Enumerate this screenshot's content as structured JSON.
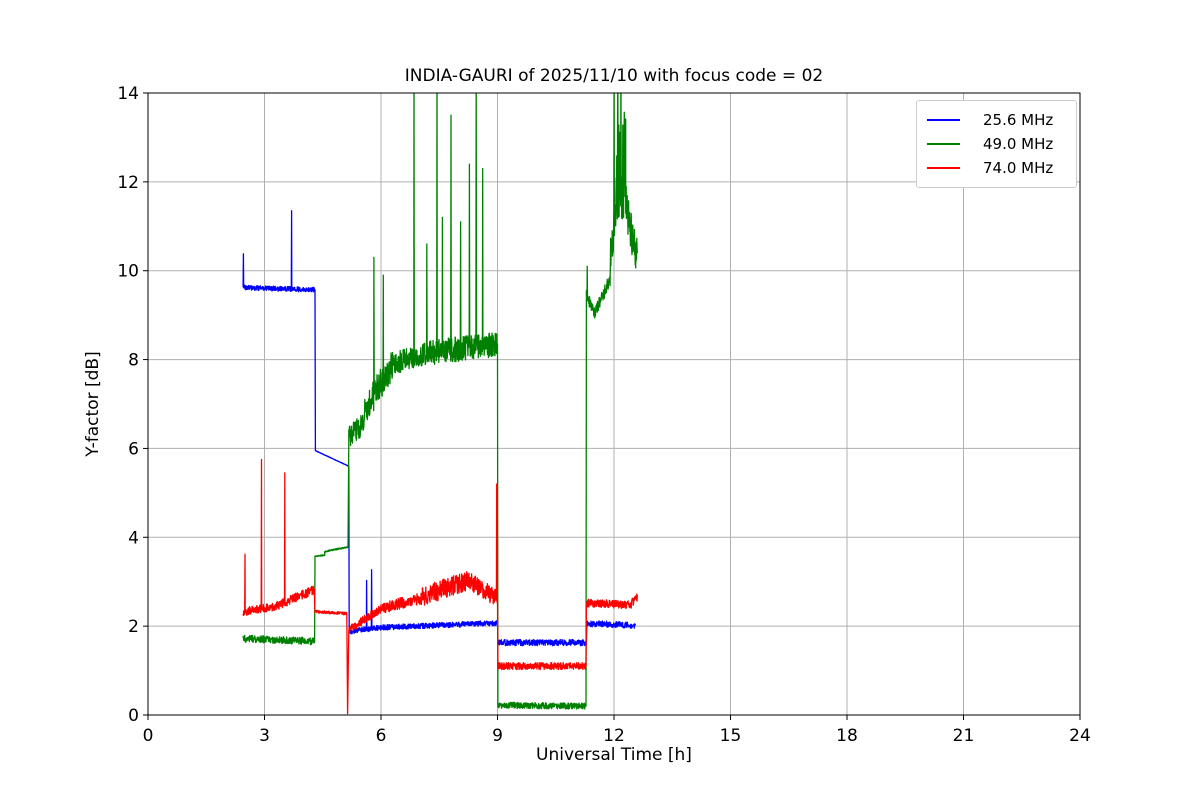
{
  "chart_data": {
    "type": "line",
    "title": "INDIA-GAURI of 2025/11/10 with focus code = 02",
    "xlabel": "Universal Time [h]",
    "ylabel": "Y-factor [dB]",
    "xlim": [
      0,
      24
    ],
    "ylim": [
      0,
      14
    ],
    "xticks": [
      0,
      3,
      6,
      9,
      12,
      15,
      18,
      21,
      24
    ],
    "yticks": [
      0,
      2,
      4,
      6,
      8,
      10,
      12,
      14
    ],
    "grid": true,
    "grid_color": "#b0b0b0",
    "axis_color": "#000000",
    "background": "#ffffff",
    "legend_position": "upper right",
    "series": [
      {
        "name": "25.6 MHz",
        "color": "#0000ff",
        "segments": [
          {
            "x0": 2.45,
            "x1": 4.3,
            "y0": 9.62,
            "y1": 9.57,
            "noise": 0.055
          },
          {
            "x0": 4.3,
            "x1": 4.31,
            "y0": 9.57,
            "y1": 5.95,
            "noise": 0
          },
          {
            "x0": 4.31,
            "x1": 5.17,
            "y0": 5.95,
            "y1": 5.6,
            "noise": 0.005
          },
          {
            "x0": 5.17,
            "x1": 5.18,
            "y0": 5.6,
            "y1": 1.85,
            "noise": 0
          },
          {
            "x0": 5.18,
            "x1": 6.0,
            "y0": 1.88,
            "y1": 1.97,
            "noise": 0.06
          },
          {
            "x0": 6.0,
            "x1": 9.0,
            "y0": 1.97,
            "y1": 2.07,
            "noise": 0.06
          },
          {
            "x0": 9.0,
            "x1": 9.01,
            "y0": 2.07,
            "y1": 1.64,
            "noise": 0
          },
          {
            "x0": 9.01,
            "x1": 11.29,
            "y0": 1.63,
            "y1": 1.63,
            "noise": 0.07
          },
          {
            "x0": 11.29,
            "x1": 11.3,
            "y0": 1.63,
            "y1": 2.06,
            "noise": 0
          },
          {
            "x0": 11.3,
            "x1": 12.55,
            "y0": 2.06,
            "y1": 2.02,
            "noise": 0.07
          }
        ],
        "spikes": [
          {
            "x": 2.46,
            "y": 10.38
          },
          {
            "x": 3.7,
            "y": 11.35
          },
          {
            "x": 5.63,
            "y": 3.03
          },
          {
            "x": 5.76,
            "y": 3.27
          }
        ]
      },
      {
        "name": "49.0 MHz",
        "color": "#008000",
        "segments": [
          {
            "x0": 2.45,
            "x1": 4.29,
            "y0": 1.72,
            "y1": 1.66,
            "noise": 0.08
          },
          {
            "x0": 4.29,
            "x1": 4.3,
            "y0": 1.66,
            "y1": 3.55,
            "noise": 0
          },
          {
            "x0": 4.3,
            "x1": 4.55,
            "y0": 3.57,
            "y1": 3.6,
            "noise": 0.012
          },
          {
            "x0": 4.55,
            "x1": 5.15,
            "y0": 3.68,
            "y1": 3.78,
            "noise": 0.015
          },
          {
            "x0": 5.15,
            "x1": 5.17,
            "y0": 3.78,
            "y1": 6.1,
            "noise": 0
          },
          {
            "x0": 5.17,
            "x1": 5.55,
            "y0": 6.25,
            "y1": 6.55,
            "noise": 0.25
          },
          {
            "x0": 5.55,
            "x1": 6.3,
            "y0": 6.8,
            "y1": 7.9,
            "noise": 0.35
          },
          {
            "x0": 6.3,
            "x1": 7.2,
            "y0": 7.9,
            "y1": 8.15,
            "noise": 0.25
          },
          {
            "x0": 7.2,
            "x1": 9.0,
            "y0": 8.15,
            "y1": 8.35,
            "noise": 0.28
          },
          {
            "x0": 9.0,
            "x1": 9.01,
            "y0": 8.35,
            "y1": 0.22,
            "noise": 0
          },
          {
            "x0": 9.01,
            "x1": 11.28,
            "y0": 0.22,
            "y1": 0.2,
            "noise": 0.07
          },
          {
            "x0": 11.28,
            "x1": 11.29,
            "y0": 0.2,
            "y1": 9.55,
            "noise": 0
          },
          {
            "x0": 11.29,
            "x1": 11.5,
            "y0": 9.45,
            "y1": 9.05,
            "noise": 0.13
          },
          {
            "x0": 11.5,
            "x1": 11.9,
            "y0": 9.05,
            "y1": 9.8,
            "noise": 0.15
          },
          {
            "x0": 11.9,
            "x1": 12.05,
            "y0": 10.2,
            "y1": 11.5,
            "noise": 0.5
          },
          {
            "x0": 12.05,
            "x1": 12.3,
            "y0": 12.0,
            "y1": 12.5,
            "noise": 1.2
          },
          {
            "x0": 12.3,
            "x1": 12.6,
            "y0": 11.4,
            "y1": 10.3,
            "noise": 0.55
          }
        ],
        "spikes": [
          {
            "x": 5.82,
            "y": 10.3
          },
          {
            "x": 6.06,
            "y": 9.9
          },
          {
            "x": 6.85,
            "y": 14.8
          },
          {
            "x": 7.18,
            "y": 10.6
          },
          {
            "x": 7.44,
            "y": 14.8
          },
          {
            "x": 7.58,
            "y": 11.2
          },
          {
            "x": 7.8,
            "y": 13.5
          },
          {
            "x": 8.05,
            "y": 11.1
          },
          {
            "x": 8.28,
            "y": 12.4
          },
          {
            "x": 8.45,
            "y": 14.8
          },
          {
            "x": 8.62,
            "y": 12.3
          },
          {
            "x": 11.31,
            "y": 10.1
          },
          {
            "x": 12.0,
            "y": 14.8
          },
          {
            "x": 12.1,
            "y": 14.8
          },
          {
            "x": 12.18,
            "y": 14.8
          }
        ]
      },
      {
        "name": "74.0 MHz",
        "color": "#ff0000",
        "segments": [
          {
            "x0": 2.45,
            "x1": 3.3,
            "y0": 2.32,
            "y1": 2.45,
            "noise": 0.09
          },
          {
            "x0": 3.3,
            "x1": 4.28,
            "y0": 2.45,
            "y1": 2.82,
            "noise": 0.1
          },
          {
            "x0": 4.28,
            "x1": 4.3,
            "y0": 2.82,
            "y1": 2.33,
            "noise": 0
          },
          {
            "x0": 4.3,
            "x1": 5.12,
            "y0": 2.33,
            "y1": 2.28,
            "noise": 0.03
          },
          {
            "x0": 5.12,
            "x1": 5.14,
            "y0": 2.28,
            "y1": 0.03,
            "noise": 0
          },
          {
            "x0": 5.14,
            "x1": 5.17,
            "y0": 0.03,
            "y1": 1.9,
            "noise": 0
          },
          {
            "x0": 5.17,
            "x1": 6.0,
            "y0": 1.92,
            "y1": 2.4,
            "noise": 0.1
          },
          {
            "x0": 6.0,
            "x1": 7.0,
            "y0": 2.4,
            "y1": 2.62,
            "noise": 0.13
          },
          {
            "x0": 7.0,
            "x1": 8.3,
            "y0": 2.65,
            "y1": 3.05,
            "noise": 0.22
          },
          {
            "x0": 8.3,
            "x1": 8.95,
            "y0": 3.0,
            "y1": 2.65,
            "noise": 0.2
          },
          {
            "x0": 8.95,
            "x1": 9.0,
            "y0": 2.65,
            "y1": 2.55,
            "noise": 0.1
          },
          {
            "x0": 9.0,
            "x1": 9.01,
            "y0": 2.55,
            "y1": 1.12,
            "noise": 0
          },
          {
            "x0": 9.01,
            "x1": 11.28,
            "y0": 1.1,
            "y1": 1.1,
            "noise": 0.08
          },
          {
            "x0": 11.28,
            "x1": 11.29,
            "y0": 1.1,
            "y1": 2.52,
            "noise": 0
          },
          {
            "x0": 11.29,
            "x1": 12.45,
            "y0": 2.52,
            "y1": 2.48,
            "noise": 0.09
          },
          {
            "x0": 12.45,
            "x1": 12.6,
            "y0": 2.52,
            "y1": 2.65,
            "noise": 0.09
          }
        ],
        "spikes": [
          {
            "x": 2.5,
            "y": 3.62
          },
          {
            "x": 2.92,
            "y": 5.75
          },
          {
            "x": 3.52,
            "y": 5.45
          },
          {
            "x": 8.98,
            "y": 5.2
          }
        ]
      }
    ]
  }
}
